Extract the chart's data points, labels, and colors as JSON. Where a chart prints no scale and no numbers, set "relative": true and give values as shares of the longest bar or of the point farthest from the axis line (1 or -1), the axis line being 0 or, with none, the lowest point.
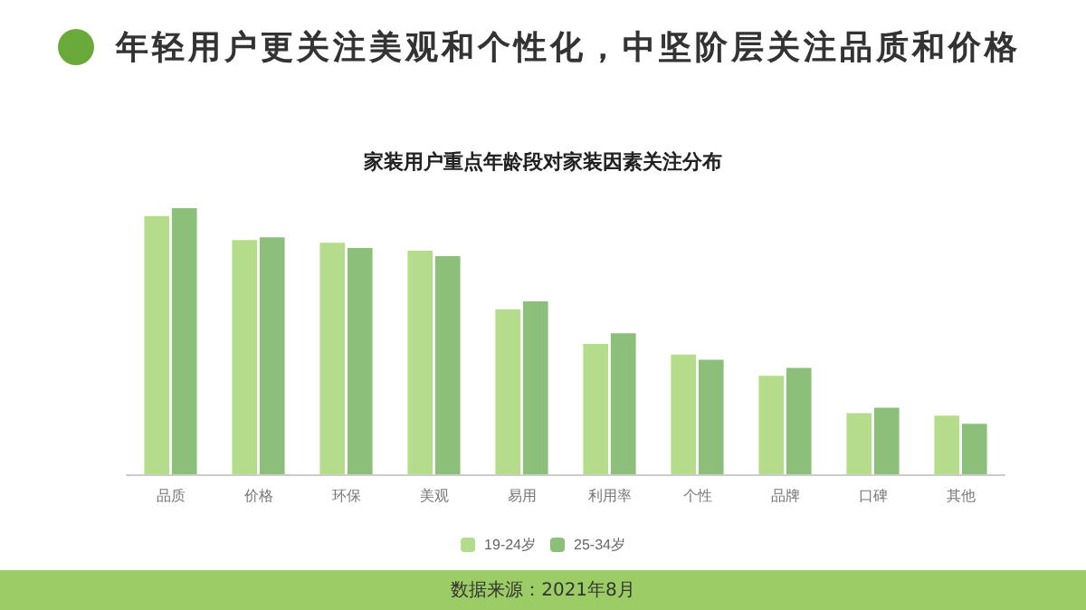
{
  "chart_data": {
    "type": "bar",
    "title": "年轻用户更关注美观和个性化，中坚阶层关注品质和价格",
    "subtitle": "家装用户重点年龄段对家装因素关注分布",
    "relative": true,
    "categories": [
      "品质",
      "价格",
      "环保",
      "美观",
      "易用",
      "利用率",
      "个性",
      "品牌",
      "口碑",
      "其他"
    ],
    "series": [
      {
        "name": "19-24岁",
        "color": "#b5dc8a",
        "values": [
          0.97,
          0.88,
          0.87,
          0.84,
          0.62,
          0.49,
          0.45,
          0.37,
          0.23,
          0.22
        ]
      },
      {
        "name": "25-34岁",
        "color": "#8cc07a",
        "values": [
          1,
          0.89,
          0.85,
          0.82,
          0.65,
          0.53,
          0.43,
          0.4,
          0.25,
          0.19
        ]
      }
    ],
    "legend": "bottom",
    "annotations": [
      "数据来源：2021年8月"
    ]
  }
}
